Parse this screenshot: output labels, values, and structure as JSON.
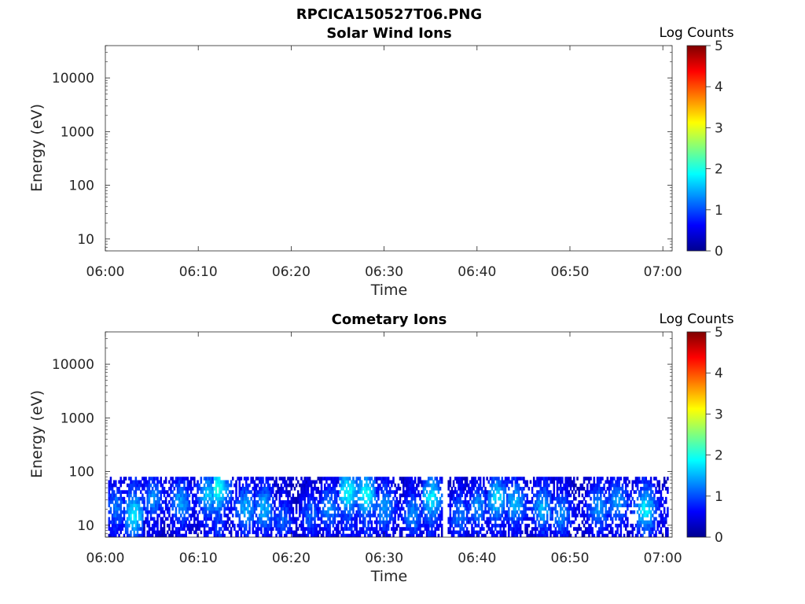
{
  "figure_title": "RPCICA150527T06.PNG",
  "colorscale": [
    "#00008f",
    "#0000ff",
    "#007fff",
    "#00ffff",
    "#7fff7f",
    "#ffff00",
    "#ff7f00",
    "#ff0000",
    "#7f0000"
  ],
  "chart_data": [
    {
      "type": "heatmap",
      "title": "Solar Wind Ions",
      "xlabel": "Time",
      "ylabel": "Energy (eV)",
      "x_ticks": [
        "06:00",
        "06:10",
        "06:20",
        "06:30",
        "06:40",
        "06:50",
        "07:00"
      ],
      "xlim": [
        "06:00",
        "07:01"
      ],
      "y_scale": "log",
      "y_ticks": [
        10,
        100,
        1000,
        10000
      ],
      "ylim": [
        6,
        40000
      ],
      "colorbar": {
        "label": "Log Counts",
        "range": [
          0,
          5
        ],
        "ticks": [
          0,
          1,
          2,
          3,
          4,
          5
        ]
      },
      "grid": false,
      "bursts": []
    },
    {
      "type": "heatmap",
      "title": "Cometary Ions",
      "xlabel": "Time",
      "ylabel": "Energy (eV)",
      "x_ticks": [
        "06:00",
        "06:10",
        "06:20",
        "06:30",
        "06:40",
        "06:50",
        "07:00"
      ],
      "xlim": [
        "06:00",
        "07:01"
      ],
      "y_scale": "log",
      "y_ticks": [
        10,
        100,
        1000,
        10000
      ],
      "ylim": [
        6,
        40000
      ],
      "colorbar": {
        "label": "Log Counts",
        "range": [
          0,
          5
        ],
        "ticks": [
          0,
          1,
          2,
          3,
          4,
          5
        ]
      },
      "grid": false,
      "energy_range_observed": [
        6,
        80
      ],
      "bursts": [
        {
          "time": "06:01",
          "peak_energy": 20,
          "peak_log_counts": 1.2
        },
        {
          "time": "06:03",
          "peak_energy": 15,
          "peak_log_counts": 1.8
        },
        {
          "time": "06:05",
          "peak_energy": 30,
          "peak_log_counts": 1.3
        },
        {
          "time": "06:08",
          "peak_energy": 25,
          "peak_log_counts": 1.4
        },
        {
          "time": "06:11",
          "peak_energy": 35,
          "peak_log_counts": 1.6
        },
        {
          "time": "06:12",
          "peak_energy": 45,
          "peak_log_counts": 2.0
        },
        {
          "time": "06:15",
          "peak_energy": 18,
          "peak_log_counts": 1.5
        },
        {
          "time": "06:17",
          "peak_energy": 20,
          "peak_log_counts": 1.5
        },
        {
          "time": "06:19",
          "peak_energy": 12,
          "peak_log_counts": 1.1
        },
        {
          "time": "06:22",
          "peak_energy": 15,
          "peak_log_counts": 1.1
        },
        {
          "time": "06:24",
          "peak_energy": 20,
          "peak_log_counts": 1.3
        },
        {
          "time": "06:26",
          "peak_energy": 40,
          "peak_log_counts": 1.9
        },
        {
          "time": "06:28",
          "peak_energy": 35,
          "peak_log_counts": 1.9
        },
        {
          "time": "06:30",
          "peak_energy": 20,
          "peak_log_counts": 1.4
        },
        {
          "time": "06:33",
          "peak_energy": 15,
          "peak_log_counts": 1.3
        },
        {
          "time": "06:35",
          "peak_energy": 30,
          "peak_log_counts": 1.8
        },
        {
          "time": "06:38",
          "peak_energy": 15,
          "peak_log_counts": 1.2
        },
        {
          "time": "06:40",
          "peak_energy": 20,
          "peak_log_counts": 1.3
        },
        {
          "time": "06:42",
          "peak_energy": 30,
          "peak_log_counts": 1.7
        },
        {
          "time": "06:44",
          "peak_energy": 25,
          "peak_log_counts": 1.5
        },
        {
          "time": "06:47",
          "peak_energy": 20,
          "peak_log_counts": 1.5
        },
        {
          "time": "06:49",
          "peak_energy": 15,
          "peak_log_counts": 1.3
        },
        {
          "time": "06:53",
          "peak_energy": 20,
          "peak_log_counts": 1.4
        },
        {
          "time": "06:55",
          "peak_energy": 25,
          "peak_log_counts": 1.4
        },
        {
          "time": "06:58",
          "peak_energy": 18,
          "peak_log_counts": 1.8
        }
      ]
    }
  ]
}
